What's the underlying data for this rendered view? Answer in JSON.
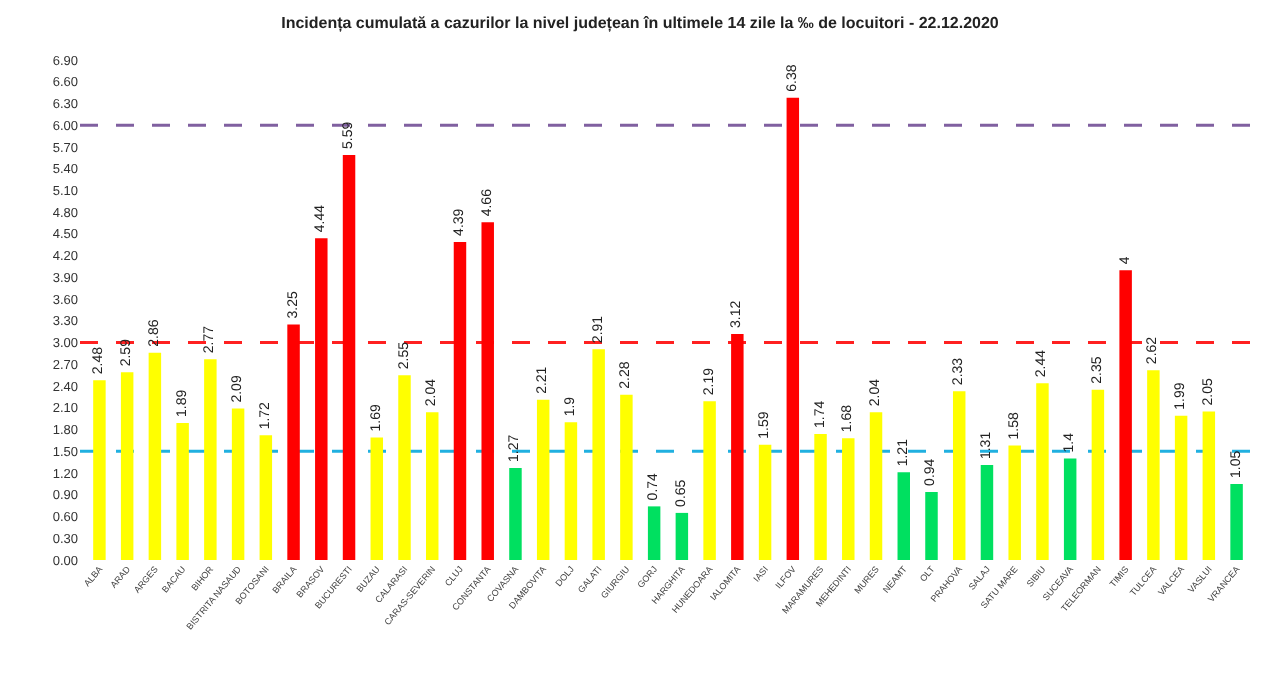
{
  "chart_data": {
    "type": "bar",
    "title": "Incidența cumulată a cazurilor la nivel județean în ultimele 14 zile la ‰ de locuitori - 22.12.2020",
    "categories": [
      "ALBA",
      "ARAD",
      "ARGES",
      "BACAU",
      "BIHOR",
      "BISTRITA NASAUD",
      "BOTOSANI",
      "BRAILA",
      "BRASOV",
      "BUCURESTI",
      "BUZAU",
      "CALARASI",
      "CARAS-SEVERIN",
      "CLUJ",
      "CONSTANTA",
      "COVASNA",
      "DAMBOVITA",
      "DOLJ",
      "GALATI",
      "GIURGIU",
      "GORJ",
      "HARGHITA",
      "HUNEDOARA",
      "IALOMITA",
      "IASI",
      "ILFOV",
      "MARAMURES",
      "MEHEDINTI",
      "MURES",
      "NEAMT",
      "OLT",
      "PRAHOVA",
      "SALAJ",
      "SATU MARE",
      "SIBIU",
      "SUCEAVA",
      "TELEORMAN",
      "TIMIS",
      "TULCEA",
      "VALCEA",
      "VASLUI",
      "VRANCEA"
    ],
    "values": [
      2.48,
      2.59,
      2.86,
      1.89,
      2.77,
      2.09,
      1.72,
      3.25,
      4.44,
      5.59,
      1.69,
      2.55,
      2.04,
      4.39,
      4.66,
      1.27,
      2.21,
      1.9,
      2.91,
      2.28,
      0.74,
      0.65,
      2.19,
      3.12,
      1.59,
      6.38,
      1.74,
      1.68,
      2.04,
      1.21,
      0.94,
      2.33,
      1.31,
      1.58,
      2.44,
      1.4,
      2.35,
      4,
      2.62,
      1.99,
      2.05,
      1.05
    ],
    "colors": [
      "#ffff00",
      "#ffff00",
      "#ffff00",
      "#ffff00",
      "#ffff00",
      "#ffff00",
      "#ffff00",
      "#ff0000",
      "#ff0000",
      "#ff0000",
      "#ffff00",
      "#ffff00",
      "#ffff00",
      "#ff0000",
      "#ff0000",
      "#00e060",
      "#ffff00",
      "#ffff00",
      "#ffff00",
      "#ffff00",
      "#00e060",
      "#00e060",
      "#ffff00",
      "#ff0000",
      "#ffff00",
      "#ff0000",
      "#ffff00",
      "#ffff00",
      "#ffff00",
      "#00e060",
      "#00e060",
      "#ffff00",
      "#00e060",
      "#ffff00",
      "#ffff00",
      "#00e060",
      "#ffff00",
      "#ff0000",
      "#ffff00",
      "#ffff00",
      "#ffff00",
      "#00e060"
    ],
    "ylim": [
      0,
      6.9
    ],
    "yticks": [
      {
        "value": 0,
        "label": "0.00"
      },
      {
        "value": 0.3,
        "label": "0.30"
      },
      {
        "value": 0.6,
        "label": "0.60"
      },
      {
        "value": 0.9,
        "label": "0.90"
      },
      {
        "value": 1.2,
        "label": "1.20"
      },
      {
        "value": 1.5,
        "label": "1.50"
      },
      {
        "value": 1.8,
        "label": "1.80"
      },
      {
        "value": 2.1,
        "label": "2.10"
      },
      {
        "value": 2.4,
        "label": "2.40"
      },
      {
        "value": 2.7,
        "label": "2.70"
      },
      {
        "value": 3.0,
        "label": "3.00"
      },
      {
        "value": 3.3,
        "label": "3.30"
      },
      {
        "value": 3.6,
        "label": "3.60"
      },
      {
        "value": 3.9,
        "label": "3.90"
      },
      {
        "value": 4.2,
        "label": "4.20"
      },
      {
        "value": 4.5,
        "label": "4.50"
      },
      {
        "value": 4.8,
        "label": "4.80"
      },
      {
        "value": 5.1,
        "label": "5.10"
      },
      {
        "value": 5.4,
        "label": "5.40"
      },
      {
        "value": 5.7,
        "label": "5.70"
      },
      {
        "value": 6.0,
        "label": "6.00"
      },
      {
        "value": 6.3,
        "label": "6.30"
      },
      {
        "value": 6.6,
        "label": "6.60"
      },
      {
        "value": 6.9,
        "label": "6.90"
      }
    ],
    "ref_lines": [
      {
        "axis": "y",
        "value": 6,
        "color": "#8060a0",
        "line_style": "dashed"
      },
      {
        "axis": "y",
        "value": 3,
        "color": "#ff2020",
        "line_style": "dashed"
      },
      {
        "axis": "y",
        "value": 1.5,
        "color": "#20b0e0",
        "line_style": "dashed"
      }
    ],
    "data_labels": true
  }
}
